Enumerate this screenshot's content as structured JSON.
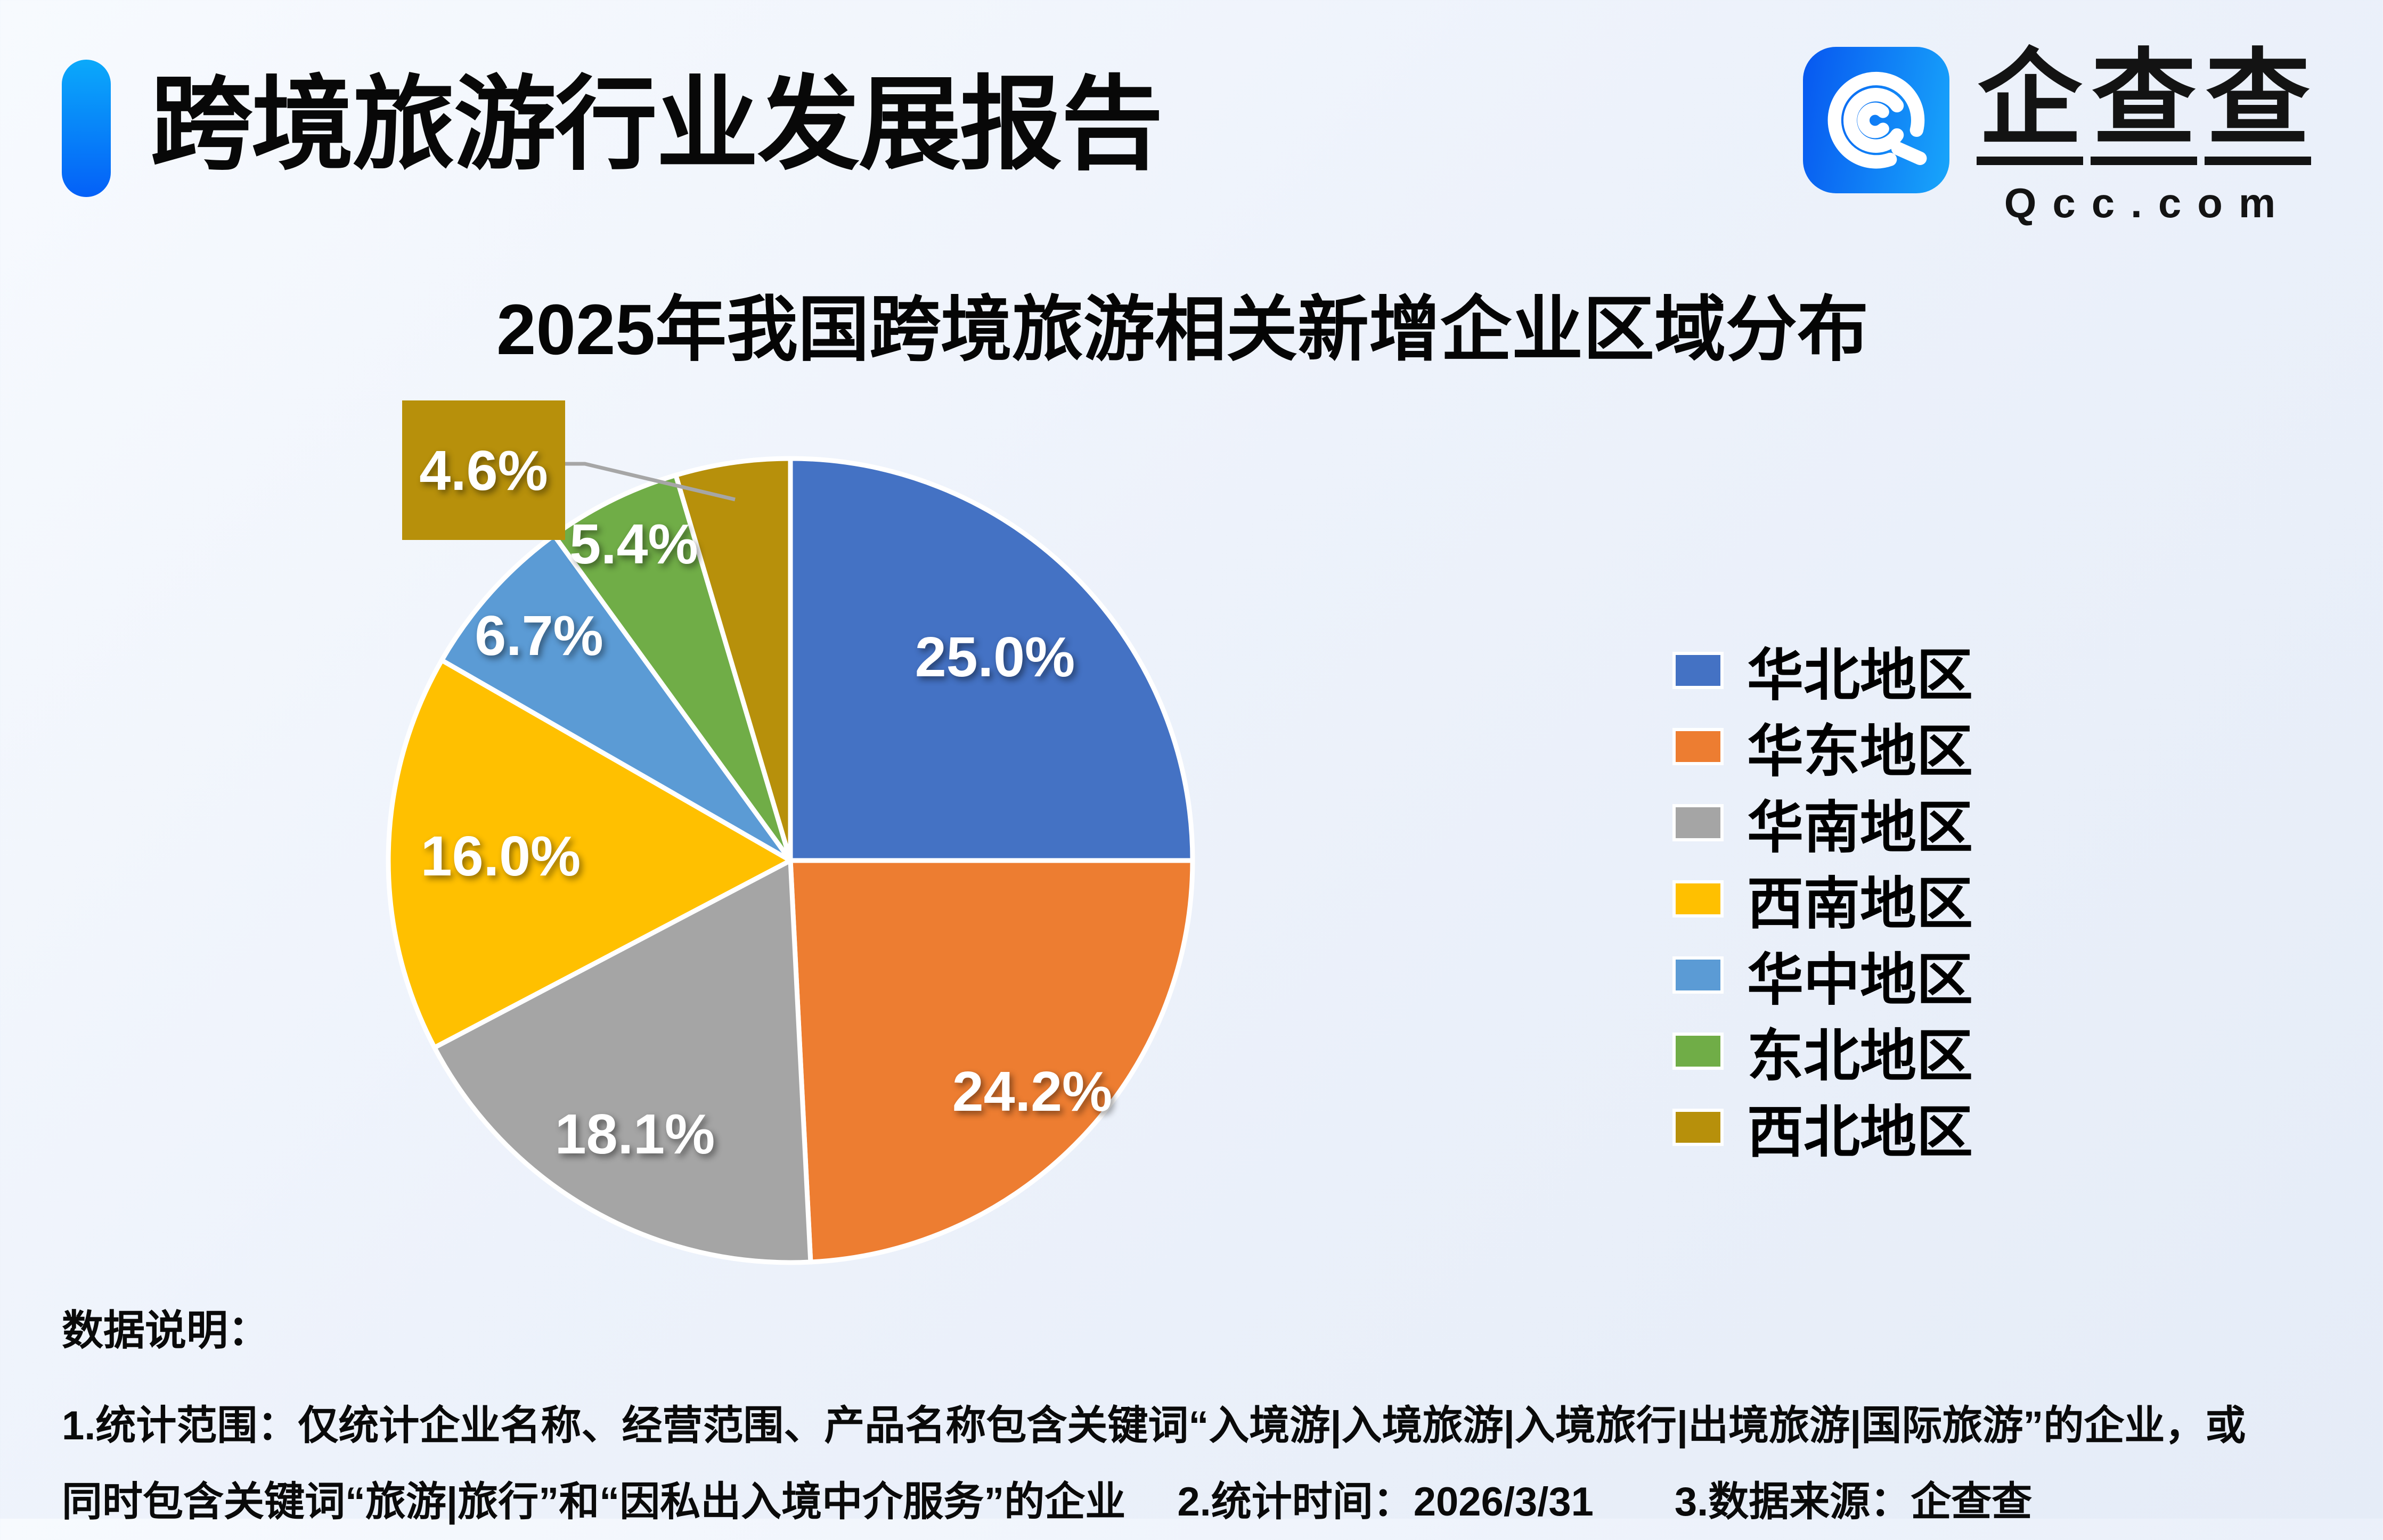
{
  "header": {
    "title": "跨境旅游行业发展报告",
    "accent_color_top": "#0BA9FA",
    "accent_color_bottom": "#0460F8",
    "brand": {
      "name": "企查查",
      "domain": "Qcc.com",
      "icon": "qcc-logo-icon",
      "icon_color_left": "#0757F0",
      "icon_color_right": "#18A6FB"
    }
  },
  "chart_data": {
    "type": "pie",
    "title": "2025年我国跨境旅游相关新增企业区域分布",
    "categories": [
      "华北地区",
      "华东地区",
      "华南地区",
      "西南地区",
      "华中地区",
      "东北地区",
      "西北地区"
    ],
    "values": [
      25.0,
      24.2,
      18.1,
      16.0,
      6.7,
      5.4,
      4.6
    ],
    "labels": [
      "25.0%",
      "24.2%",
      "18.1%",
      "16.0%",
      "6.7%",
      "5.4%",
      "4.6%"
    ],
    "colors": [
      "#4472C4",
      "#ED7D31",
      "#A5A5A5",
      "#FFC000",
      "#5B9BD5",
      "#70AD47",
      "#B7900B"
    ],
    "legend_position": "right",
    "grid": false,
    "start_angle_deg": 0,
    "direction": "clockwise",
    "callout": {
      "category": "西北地区",
      "label": "4.6%",
      "leader_color": "#A6A6A6"
    }
  },
  "notes": {
    "heading": "数据说明：",
    "lines": [
      "1.统计范围：仅统计企业名称、经营范围、产品名称包含关键词“入境游|入境旅游|入境旅行|出境旅游|国际旅游”的企业，或",
      "同时包含关键词“旅游|旅行”和“因私出入境中介服务”的企业　 2.统计时间：2026/3/31　　3.数据来源：企查查"
    ]
  }
}
